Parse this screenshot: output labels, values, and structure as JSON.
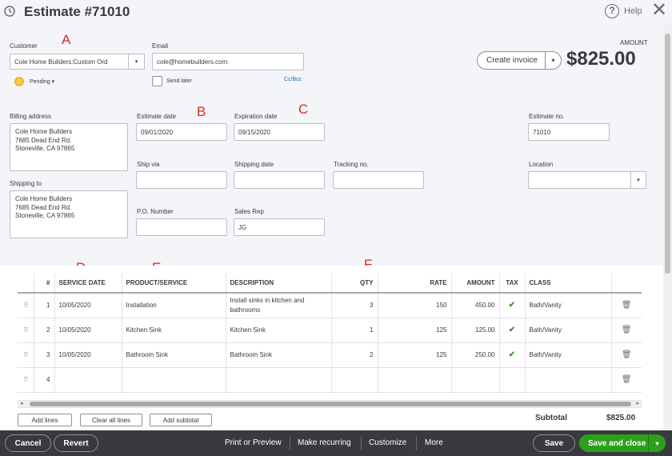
{
  "header": {
    "title": "Estimate #71010",
    "help_label": "Help",
    "close_glyph": "✕",
    "help_glyph": "?"
  },
  "annotations": {
    "a": "A",
    "b": "B",
    "c": "C",
    "d": "D",
    "e": "E",
    "f": "F"
  },
  "customer": {
    "label": "Customer",
    "value": "Cole Home Builders:Custom Ord",
    "status": "Pending ▾"
  },
  "email": {
    "label": "Email",
    "value": "cole@homebuilders.com",
    "send_later": "Send later",
    "cc_bcc": "Cc/Bcc"
  },
  "actions": {
    "create_invoice": "Create invoice"
  },
  "amount": {
    "label": "AMOUNT",
    "value": "$825.00"
  },
  "billing": {
    "label": "Billing address",
    "lines": [
      "Cole Home Builders",
      "7685 Dead End Rd.",
      "Stoneville, CA 97865"
    ]
  },
  "shipping": {
    "label": "Shipping to",
    "lines": [
      "Cole Home Builders",
      "7685 Dead End Rd.",
      "Stoneville, CA  97865"
    ]
  },
  "estimate_date": {
    "label": "Estimate date",
    "value": "09/01/2020"
  },
  "expiration_date": {
    "label": "Expiration date",
    "value": "09/15/2020"
  },
  "estimate_no": {
    "label": "Estimate no.",
    "value": "71010"
  },
  "ship_via": {
    "label": "Ship via",
    "value": ""
  },
  "shipping_date": {
    "label": "Shipping date",
    "value": ""
  },
  "tracking_no": {
    "label": "Tracking no.",
    "value": ""
  },
  "location": {
    "label": "Location",
    "value": ""
  },
  "po_number": {
    "label": "P.O. Number",
    "value": ""
  },
  "sales_rep": {
    "label": "Sales Rep",
    "value": "JG"
  },
  "table": {
    "columns": [
      "#",
      "SERVICE DATE",
      "PRODUCT/SERVICE",
      "DESCRIPTION",
      "QTY",
      "RATE",
      "AMOUNT",
      "TAX",
      "CLASS"
    ],
    "rows": [
      {
        "num": "1",
        "date": "10/05/2020",
        "product": "Installation",
        "description": "Install sinks in kitchen and bathrooms",
        "qty": "3",
        "rate": "150",
        "amount": "450.00",
        "tax": "✔",
        "class": "Bath/Vanity"
      },
      {
        "num": "2",
        "date": "10/05/2020",
        "product": "Kitchen Sink",
        "description": "Kitchen Sink",
        "qty": "1",
        "rate": "125",
        "amount": "125.00",
        "tax": "✔",
        "class": "Bath/Vanity"
      },
      {
        "num": "3",
        "date": "10/05/2020",
        "product": "Bathroom Sink",
        "description": "Bathroom Sink",
        "qty": "2",
        "rate": "125",
        "amount": "250.00",
        "tax": "✔",
        "class": "Bath/Vanity"
      },
      {
        "num": "4",
        "date": "",
        "product": "",
        "description": "",
        "qty": "",
        "rate": "",
        "amount": "",
        "tax": "",
        "class": ""
      }
    ]
  },
  "table_actions": {
    "add_lines": "Add lines",
    "clear_all_lines": "Clear all lines",
    "add_subtotal": "Add subtotal"
  },
  "subtotal": {
    "label": "Subtotal",
    "value": "$825.00"
  },
  "footer": {
    "cancel": "Cancel",
    "revert": "Revert",
    "print_preview": "Print or Preview",
    "make_recurring": "Make recurring",
    "customize": "Customize",
    "more": "More",
    "save": "Save",
    "save_and_close": "Save and close"
  },
  "colors": {
    "accent_green": "#2ca01c",
    "footer_bg": "#393a3d",
    "link_blue": "#0077c5",
    "annotation_red": "#d52b1e"
  },
  "icons": [
    "clock-icon",
    "help-icon",
    "close-icon",
    "chevron-down-icon",
    "drag-handle-icon",
    "check-icon",
    "trash-icon"
  ]
}
